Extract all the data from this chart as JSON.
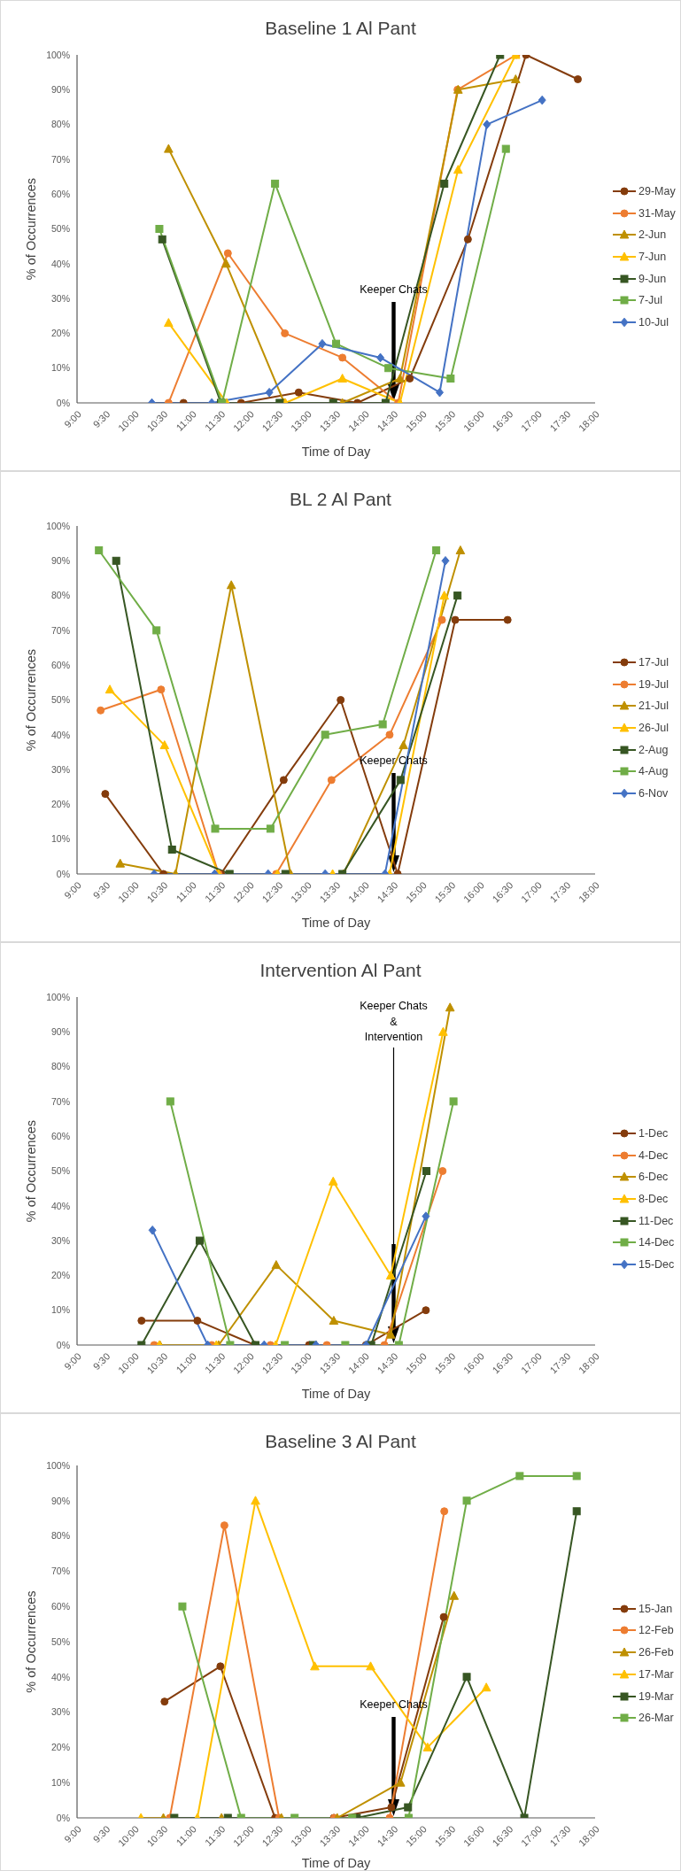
{
  "chart_data": [
    {
      "type": "line",
      "title": "Baseline 1 Al Pant",
      "xlabel": "Time of Day",
      "ylabel": "% of Occurrences",
      "xlim": [
        9,
        18
      ],
      "ylim": [
        0,
        100
      ],
      "xticks": [
        {
          "value": 9,
          "label": "9:00"
        },
        {
          "value": 9.5,
          "label": "9:30"
        },
        {
          "value": 10,
          "label": "10:00"
        },
        {
          "value": 10.5,
          "label": "10:30"
        },
        {
          "value": 11,
          "label": "11:00"
        },
        {
          "value": 11.5,
          "label": "11:30"
        },
        {
          "value": 12,
          "label": "12:00"
        },
        {
          "value": 12.5,
          "label": "12:30"
        },
        {
          "value": 13,
          "label": "13:00"
        },
        {
          "value": 13.5,
          "label": "13:30"
        },
        {
          "value": 14,
          "label": "14:00"
        },
        {
          "value": 14.5,
          "label": "14:30"
        },
        {
          "value": 15,
          "label": "15:00"
        },
        {
          "value": 15.5,
          "label": "15:30"
        },
        {
          "value": 16,
          "label": "16:00"
        },
        {
          "value": 16.5,
          "label": "16:30"
        },
        {
          "value": 17,
          "label": "17:00"
        },
        {
          "value": 17.5,
          "label": "17:30"
        },
        {
          "value": 18,
          "label": "18:00"
        }
      ],
      "yticks": [
        {
          "value": 0,
          "label": "0%"
        },
        {
          "value": 10,
          "label": "10%"
        },
        {
          "value": 20,
          "label": "20%"
        },
        {
          "value": 30,
          "label": "30%"
        },
        {
          "value": 40,
          "label": "40%"
        },
        {
          "value": 50,
          "label": "50%"
        },
        {
          "value": 60,
          "label": "60%"
        },
        {
          "value": 70,
          "label": "70%"
        },
        {
          "value": 80,
          "label": "80%"
        },
        {
          "value": 90,
          "label": "90%"
        },
        {
          "value": 100,
          "label": "100%"
        }
      ],
      "legend": "right",
      "ref_lines": [
        {
          "axis": "x",
          "value": 14.5,
          "label": "Keeper Chats",
          "color": "#000000"
        }
      ],
      "series": [
        {
          "name": "29-May",
          "color": "#843c0c",
          "marker": "circle",
          "x": [
            10.85,
            11.85,
            12.85,
            13.87,
            14.78,
            15.79,
            16.8,
            17.7
          ],
          "values": [
            0,
            0,
            3,
            0,
            7,
            47,
            100,
            93
          ]
        },
        {
          "name": "31-May",
          "color": "#ed7d31",
          "marker": "circle",
          "x": [
            10.59,
            11.62,
            12.61,
            13.61,
            14.58,
            15.61,
            16.63
          ],
          "values": [
            0,
            43,
            20,
            13,
            0,
            90,
            100
          ]
        },
        {
          "name": "2-Jun",
          "color": "#bf9000",
          "marker": "triangle",
          "x": [
            10.59,
            11.59,
            12.6,
            13.61,
            14.61,
            15.62,
            16.62
          ],
          "values": [
            73,
            40,
            0,
            0,
            7,
            90,
            93
          ]
        },
        {
          "name": "7-Jun",
          "color": "#ffc000",
          "marker": "triangle",
          "x": [
            10.59,
            11.6,
            12.62,
            13.61,
            14.61,
            15.62,
            16.62
          ],
          "values": [
            23,
            0,
            0,
            7,
            0,
            67,
            100
          ]
        },
        {
          "name": "9-Jun",
          "color": "#375623",
          "marker": "square",
          "x": [
            10.48,
            11.5,
            12.52,
            13.45,
            14.36,
            15.38,
            16.35
          ],
          "values": [
            47,
            0,
            0,
            0,
            0,
            63,
            100
          ]
        },
        {
          "name": "7-Jul",
          "color": "#70ad47",
          "marker": "square",
          "x": [
            10.43,
            11.52,
            12.44,
            13.5,
            14.41,
            15.49,
            16.45
          ],
          "values": [
            50,
            0,
            63,
            17,
            10,
            7,
            73
          ]
        },
        {
          "name": "10-Jul",
          "color": "#4472c4",
          "marker": "diamond",
          "x": [
            10.3,
            11.34,
            12.34,
            13.26,
            14.27,
            15.3,
            16.12,
            17.08
          ],
          "values": [
            0,
            0,
            3,
            17,
            13,
            3,
            80,
            87
          ]
        }
      ]
    },
    {
      "type": "line",
      "title": "BL 2 Al Pant",
      "xlabel": "Time of Day",
      "ylabel": "% of Occurrences",
      "xlim": [
        9,
        18
      ],
      "ylim": [
        0,
        100
      ],
      "xticks": [
        {
          "value": 9,
          "label": "9:00"
        },
        {
          "value": 9.5,
          "label": "9:30"
        },
        {
          "value": 10,
          "label": "10:00"
        },
        {
          "value": 10.5,
          "label": "10:30"
        },
        {
          "value": 11,
          "label": "11:00"
        },
        {
          "value": 11.5,
          "label": "11:30"
        },
        {
          "value": 12,
          "label": "12:00"
        },
        {
          "value": 12.5,
          "label": "12:30"
        },
        {
          "value": 13,
          "label": "13:00"
        },
        {
          "value": 13.5,
          "label": "13:30"
        },
        {
          "value": 14,
          "label": "14:00"
        },
        {
          "value": 14.5,
          "label": "14:30"
        },
        {
          "value": 15,
          "label": "15:00"
        },
        {
          "value": 15.5,
          "label": "15:30"
        },
        {
          "value": 16,
          "label": "16:00"
        },
        {
          "value": 16.5,
          "label": "16:30"
        },
        {
          "value": 17,
          "label": "17:00"
        },
        {
          "value": 17.5,
          "label": "17:30"
        },
        {
          "value": 18,
          "label": "18:00"
        }
      ],
      "yticks": [
        {
          "value": 0,
          "label": "0%"
        },
        {
          "value": 10,
          "label": "10%"
        },
        {
          "value": 20,
          "label": "20%"
        },
        {
          "value": 30,
          "label": "30%"
        },
        {
          "value": 40,
          "label": "40%"
        },
        {
          "value": 50,
          "label": "50%"
        },
        {
          "value": 60,
          "label": "60%"
        },
        {
          "value": 70,
          "label": "70%"
        },
        {
          "value": 80,
          "label": "80%"
        },
        {
          "value": 90,
          "label": "90%"
        },
        {
          "value": 100,
          "label": "100%"
        }
      ],
      "legend": "right",
      "ref_lines": [
        {
          "axis": "x",
          "value": 14.5,
          "label": "Keeper Chats",
          "color": "#000000"
        }
      ],
      "series": [
        {
          "name": "17-Jul",
          "color": "#843c0c",
          "marker": "circle",
          "x": [
            9.49,
            10.5,
            11.5,
            12.59,
            13.58,
            14.57,
            15.57,
            16.48
          ],
          "values": [
            23,
            0,
            0,
            27,
            50,
            0,
            73,
            73
          ]
        },
        {
          "name": "19-Jul",
          "color": "#ed7d31",
          "marker": "circle",
          "x": [
            9.41,
            10.46,
            11.46,
            12.46,
            13.42,
            14.43,
            15.34
          ],
          "values": [
            47,
            53,
            0,
            0,
            27,
            40,
            73
          ]
        },
        {
          "name": "21-Jul",
          "color": "#bf9000",
          "marker": "triangle",
          "x": [
            9.75,
            10.71,
            11.68,
            12.71,
            13.63,
            14.67,
            15.66
          ],
          "values": [
            3,
            0,
            83,
            0,
            0,
            37,
            93
          ]
        },
        {
          "name": "26-Jul",
          "color": "#ffc000",
          "marker": "triangle",
          "x": [
            9.57,
            10.52,
            11.46,
            12.48,
            13.44,
            14.43,
            15.38
          ],
          "values": [
            53,
            37,
            0,
            0,
            0,
            0,
            80
          ]
        },
        {
          "name": "2-Aug",
          "color": "#375623",
          "marker": "square",
          "x": [
            9.68,
            10.65,
            11.65,
            12.62,
            13.61,
            14.62,
            15.61
          ],
          "values": [
            90,
            7,
            0,
            0,
            0,
            27,
            80
          ]
        },
        {
          "name": "4-Aug",
          "color": "#70ad47",
          "marker": "square",
          "x": [
            9.38,
            10.38,
            11.4,
            12.36,
            13.31,
            14.31,
            15.24
          ],
          "values": [
            93,
            70,
            13,
            13,
            40,
            43,
            93
          ]
        },
        {
          "name": "6-Nov",
          "color": "#4472c4",
          "marker": "diamond",
          "x": [
            10.34,
            11.39,
            12.32,
            13.31,
            14.35,
            15.4
          ],
          "values": [
            0,
            0,
            0,
            0,
            0,
            90
          ]
        }
      ]
    },
    {
      "type": "line",
      "title": "Intervention Al Pant",
      "xlabel": "Time of Day",
      "ylabel": "% of Occurrences",
      "xlim": [
        9,
        18
      ],
      "ylim": [
        0,
        100
      ],
      "xticks": [
        {
          "value": 9,
          "label": "9:00"
        },
        {
          "value": 9.5,
          "label": "9:30"
        },
        {
          "value": 10,
          "label": "10:00"
        },
        {
          "value": 10.5,
          "label": "10:30"
        },
        {
          "value": 11,
          "label": "11:00"
        },
        {
          "value": 11.5,
          "label": "11:30"
        },
        {
          "value": 12,
          "label": "12:00"
        },
        {
          "value": 12.5,
          "label": "12:30"
        },
        {
          "value": 13,
          "label": "13:00"
        },
        {
          "value": 13.5,
          "label": "13:30"
        },
        {
          "value": 14,
          "label": "14:00"
        },
        {
          "value": 14.5,
          "label": "14:30"
        },
        {
          "value": 15,
          "label": "15:00"
        },
        {
          "value": 15.5,
          "label": "15:30"
        },
        {
          "value": 16,
          "label": "16:00"
        },
        {
          "value": 16.5,
          "label": "16:30"
        },
        {
          "value": 17,
          "label": "17:00"
        },
        {
          "value": 17.5,
          "label": "17:30"
        },
        {
          "value": 18,
          "label": "18:00"
        }
      ],
      "yticks": [
        {
          "value": 0,
          "label": "0%"
        },
        {
          "value": 10,
          "label": "10%"
        },
        {
          "value": 20,
          "label": "20%"
        },
        {
          "value": 30,
          "label": "30%"
        },
        {
          "value": 40,
          "label": "40%"
        },
        {
          "value": 50,
          "label": "50%"
        },
        {
          "value": 60,
          "label": "60%"
        },
        {
          "value": 70,
          "label": "70%"
        },
        {
          "value": 80,
          "label": "80%"
        },
        {
          "value": 90,
          "label": "90%"
        },
        {
          "value": 100,
          "label": "100%"
        }
      ],
      "legend": "right",
      "ref_lines": [
        {
          "axis": "x",
          "value": 14.5,
          "label": "Keeper Chats\n&\nIntervention",
          "color": "#000000"
        }
      ],
      "series": [
        {
          "name": "1-Dec",
          "color": "#843c0c",
          "marker": "circle",
          "x": [
            10.12,
            11.09,
            12.09,
            13.03,
            14.02,
            15.06
          ],
          "values": [
            7,
            7,
            0,
            0,
            0,
            10
          ]
        },
        {
          "name": "4-Dec",
          "color": "#ed7d31",
          "marker": "circle",
          "x": [
            10.34,
            11.34,
            12.36,
            13.34,
            14.34,
            15.35
          ],
          "values": [
            0,
            0,
            0,
            0,
            0,
            50
          ]
        },
        {
          "name": "6-Dec",
          "color": "#bf9000",
          "marker": "triangle",
          "x": [
            10.44,
            11.46,
            12.46,
            13.46,
            14.45,
            15.48
          ],
          "values": [
            0,
            0,
            23,
            7,
            3,
            97
          ]
        },
        {
          "name": "8-Dec",
          "color": "#ffc000",
          "marker": "triangle",
          "x": [
            10.43,
            11.42,
            12.45,
            13.45,
            14.45,
            15.36
          ],
          "values": [
            0,
            0,
            0,
            47,
            20,
            90
          ]
        },
        {
          "name": "11-Dec",
          "color": "#375623",
          "marker": "square",
          "x": [
            10.12,
            11.13,
            12.1,
            13.1,
            14.11,
            15.07
          ],
          "values": [
            0,
            30,
            0,
            0,
            0,
            50
          ]
        },
        {
          "name": "14-Dec",
          "color": "#70ad47",
          "marker": "square",
          "x": [
            10.62,
            11.66,
            12.61,
            13.66,
            14.59,
            15.54
          ],
          "values": [
            70,
            0,
            0,
            0,
            0,
            70
          ]
        },
        {
          "name": "15-Dec",
          "color": "#4472c4",
          "marker": "diamond",
          "x": [
            10.31,
            11.27,
            12.25,
            13.15,
            14.02,
            15.06
          ],
          "values": [
            33,
            0,
            0,
            0,
            0,
            37
          ]
        }
      ]
    },
    {
      "type": "line",
      "title": "Baseline 3 Al Pant",
      "xlabel": "Time of Day",
      "ylabel": "% of Occurrences",
      "xlim": [
        9,
        18
      ],
      "ylim": [
        0,
        100
      ],
      "xticks": [
        {
          "value": 9,
          "label": "9:00"
        },
        {
          "value": 9.5,
          "label": "9:30"
        },
        {
          "value": 10,
          "label": "10:00"
        },
        {
          "value": 10.5,
          "label": "10:30"
        },
        {
          "value": 11,
          "label": "11:00"
        },
        {
          "value": 11.5,
          "label": "11:30"
        },
        {
          "value": 12,
          "label": "12:00"
        },
        {
          "value": 12.5,
          "label": "12:30"
        },
        {
          "value": 13,
          "label": "13:00"
        },
        {
          "value": 13.5,
          "label": "13:30"
        },
        {
          "value": 14,
          "label": "14:00"
        },
        {
          "value": 14.5,
          "label": "14:30"
        },
        {
          "value": 15,
          "label": "15:00"
        },
        {
          "value": 15.5,
          "label": "15:30"
        },
        {
          "value": 16,
          "label": "16:00"
        },
        {
          "value": 16.5,
          "label": "16:30"
        },
        {
          "value": 17,
          "label": "17:00"
        },
        {
          "value": 17.5,
          "label": "17:30"
        },
        {
          "value": 18,
          "label": "18:00"
        }
      ],
      "yticks": [
        {
          "value": 0,
          "label": "0%"
        },
        {
          "value": 10,
          "label": "10%"
        },
        {
          "value": 20,
          "label": "20%"
        },
        {
          "value": 30,
          "label": "30%"
        },
        {
          "value": 40,
          "label": "40%"
        },
        {
          "value": 50,
          "label": "50%"
        },
        {
          "value": 60,
          "label": "60%"
        },
        {
          "value": 70,
          "label": "70%"
        },
        {
          "value": 80,
          "label": "80%"
        },
        {
          "value": 90,
          "label": "90%"
        },
        {
          "value": 100,
          "label": "100%"
        }
      ],
      "legend": "right",
      "ref_lines": [
        {
          "axis": "x",
          "value": 14.5,
          "label": "Keeper Chats",
          "color": "#000000"
        }
      ],
      "series": [
        {
          "name": "15-Jan",
          "color": "#843c0c",
          "marker": "circle",
          "x": [
            10.52,
            11.49,
            12.44,
            13.46,
            14.46,
            15.37
          ],
          "values": [
            33,
            43,
            0,
            0,
            3,
            57
          ]
        },
        {
          "name": "12-Feb",
          "color": "#ed7d31",
          "marker": "circle",
          "x": [
            10.61,
            11.56,
            12.51,
            13.47,
            14.43,
            15.38
          ],
          "values": [
            0,
            83,
            0,
            0,
            0,
            87
          ]
        },
        {
          "name": "26-Feb",
          "color": "#bf9000",
          "marker": "triangle",
          "x": [
            10.5,
            11.51,
            12.55,
            13.52,
            14.62,
            15.55
          ],
          "values": [
            0,
            0,
            0,
            0,
            10,
            63
          ]
        },
        {
          "name": "17-Mar",
          "color": "#ffc000",
          "marker": "triangle",
          "x": [
            10.11,
            11.09,
            12.1,
            13.13,
            14.1,
            15.09,
            16.11
          ],
          "values": [
            0,
            0,
            90,
            43,
            43,
            20,
            37
          ]
        },
        {
          "name": "19-Mar",
          "color": "#375623",
          "marker": "square",
          "x": [
            10.69,
            11.62,
            13.86,
            14.75,
            15.77,
            16.77,
            17.68
          ],
          "values": [
            0,
            0,
            0,
            3,
            40,
            0,
            87
          ]
        },
        {
          "name": "26-Mar",
          "color": "#70ad47",
          "marker": "square",
          "x": [
            10.83,
            11.85,
            12.78,
            13.78,
            14.76,
            15.77,
            16.69,
            17.68
          ],
          "values": [
            60,
            0,
            0,
            0,
            0,
            90,
            97,
            97
          ]
        }
      ]
    }
  ]
}
